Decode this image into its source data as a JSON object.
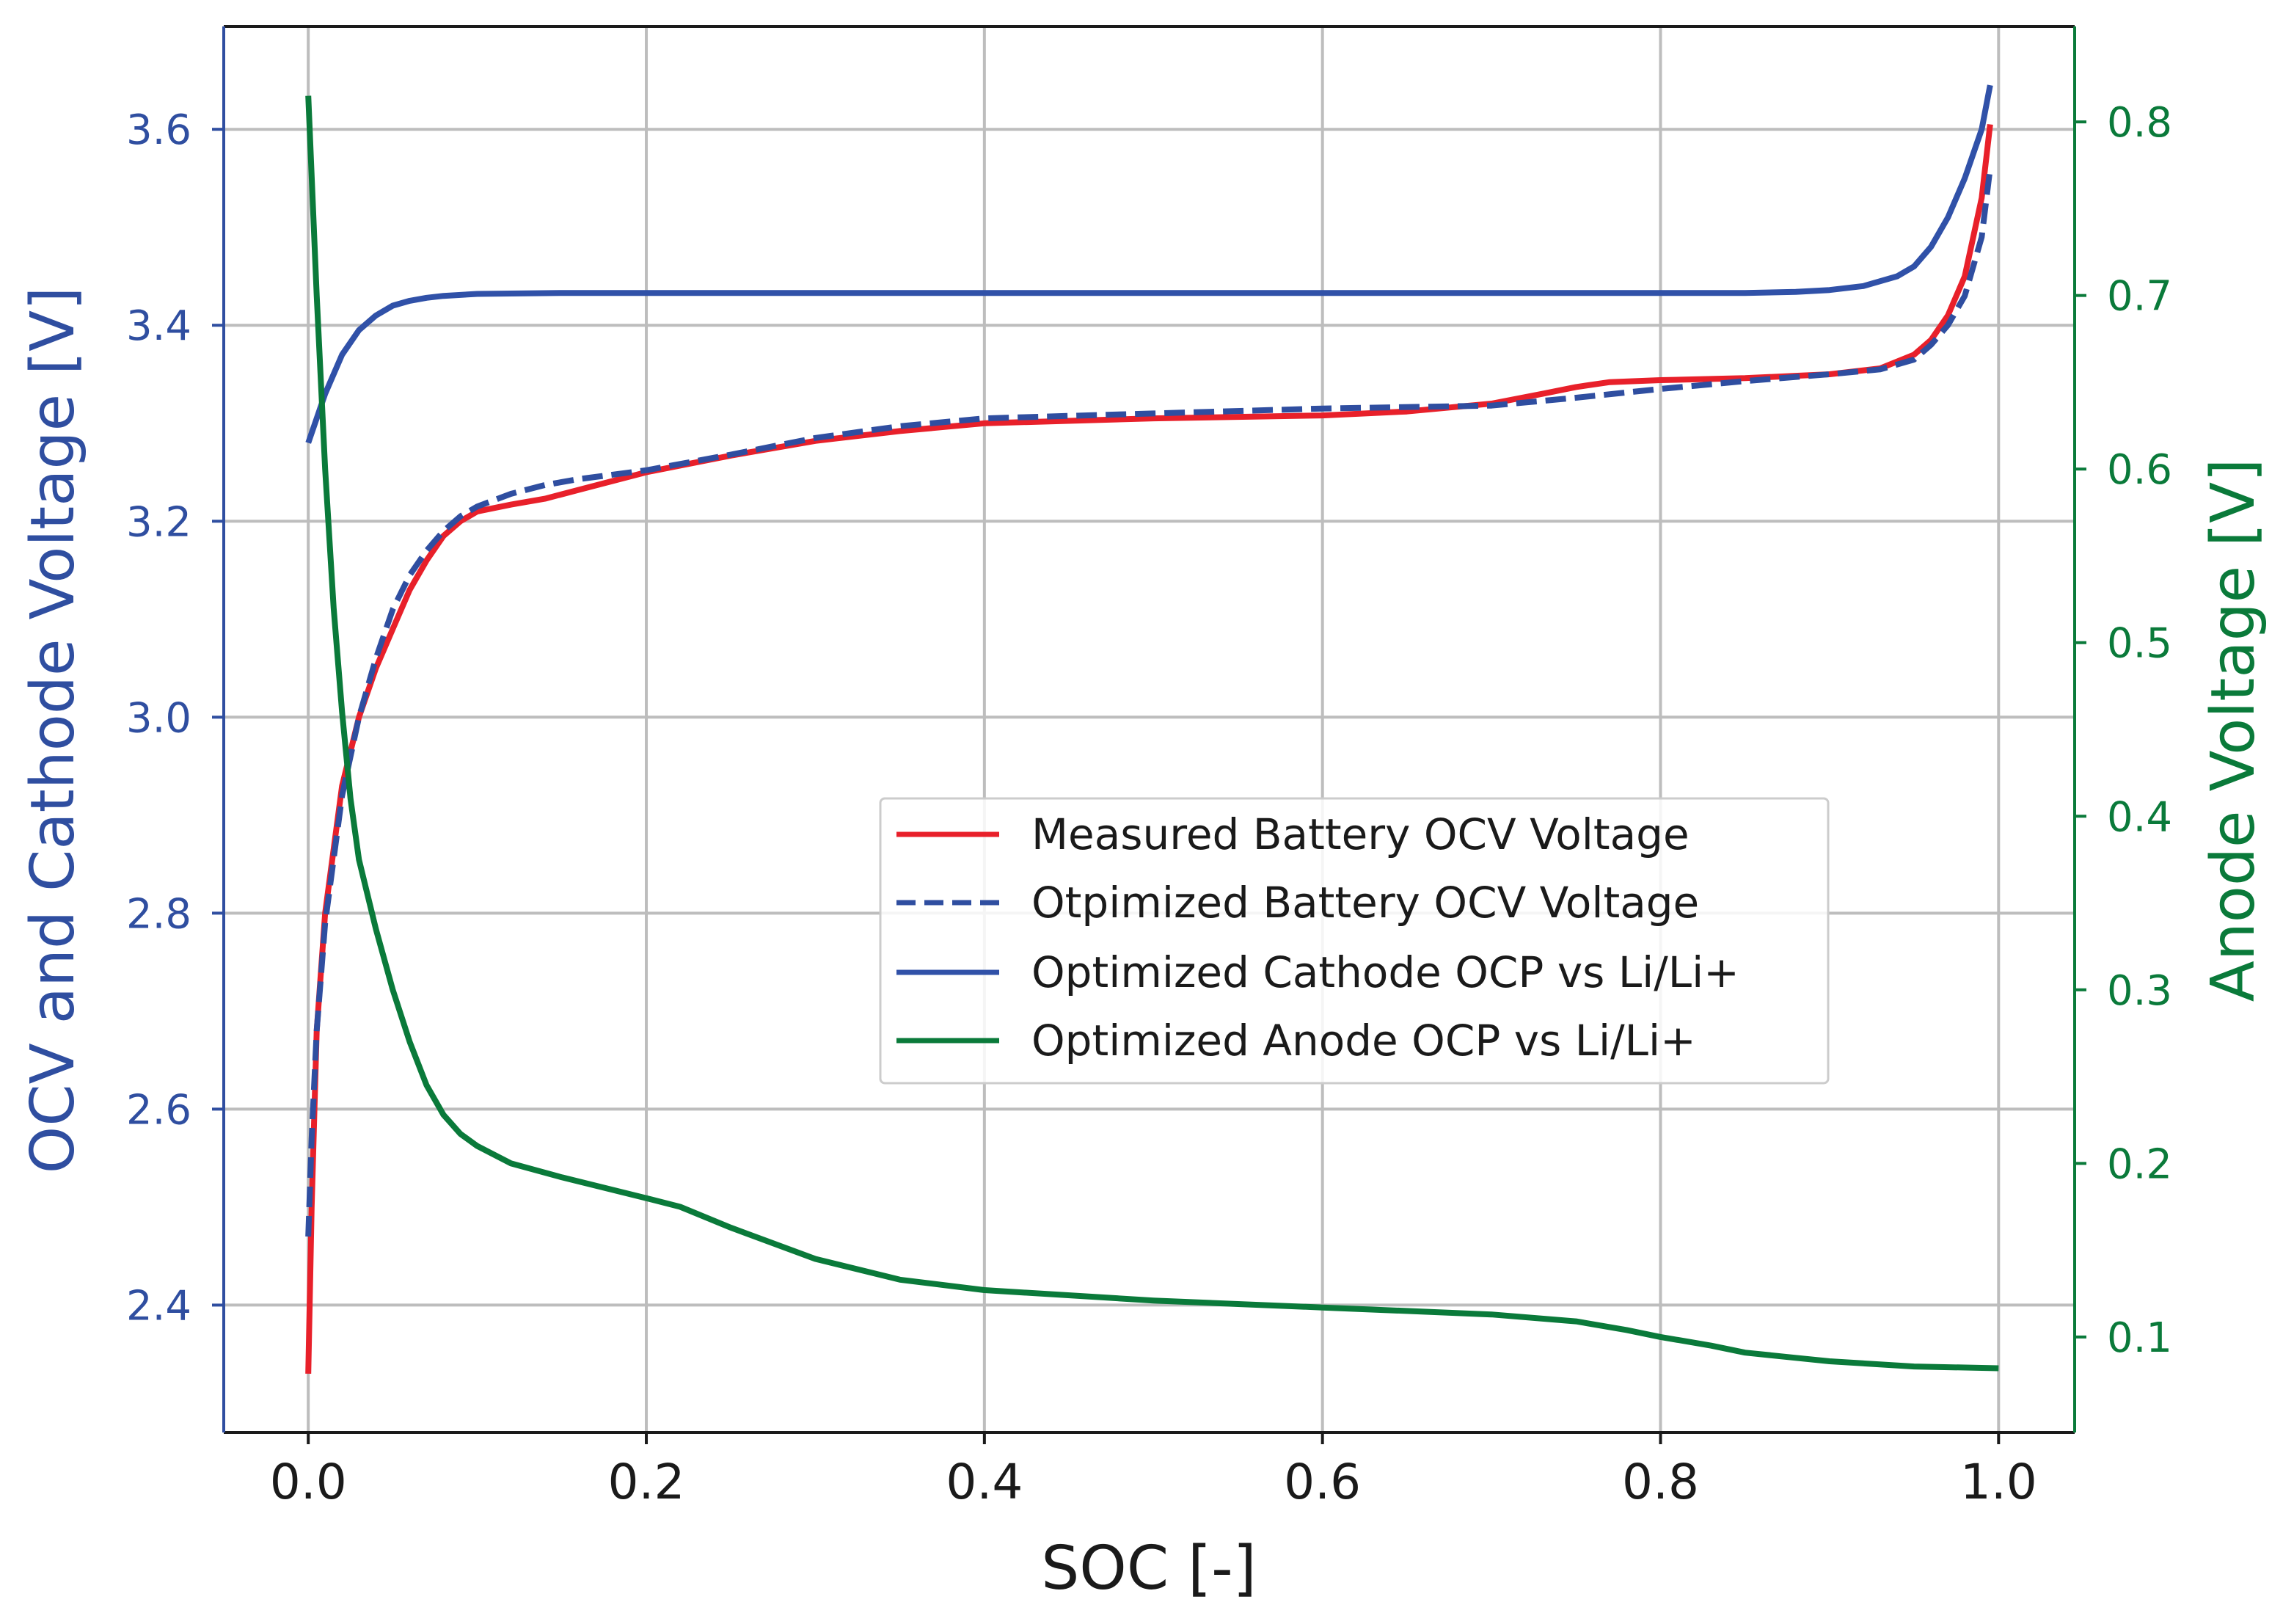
{
  "chart_data": {
    "type": "line",
    "title": "",
    "xlabel": "SOC [-]",
    "ylabel_left": "OCV and Cathode Voltage [V]",
    "ylabel_right": "Anode Voltage [V]",
    "xlim": [
      -0.05,
      1.045
    ],
    "ylim_left": [
      2.27,
      3.705
    ],
    "ylim_right": [
      0.045,
      0.855
    ],
    "x_ticks": [
      0.0,
      0.2,
      0.4,
      0.6,
      0.8,
      1.0
    ],
    "x_tick_labels": [
      "0.0",
      "0.2",
      "0.4",
      "0.6",
      "0.8",
      "1.0"
    ],
    "y_left_ticks": [
      2.4,
      2.6,
      2.8,
      3.0,
      3.2,
      3.4,
      3.6
    ],
    "y_left_tick_labels": [
      "2.4",
      "2.6",
      "2.8",
      "3.0",
      "3.2",
      "3.4",
      "3.6"
    ],
    "y_right_ticks": [
      0.1,
      0.2,
      0.3,
      0.4,
      0.5,
      0.6,
      0.7,
      0.8
    ],
    "y_right_tick_labels": [
      "0.1",
      "0.2",
      "0.3",
      "0.4",
      "0.5",
      "0.6",
      "0.7",
      "0.8"
    ],
    "grid": true,
    "legend_position": "center-right",
    "colors": {
      "left_axis": "#2f4ea0",
      "right_axis": "#0a7a3a",
      "grid": "#bdbdbd"
    },
    "series": [
      {
        "name": "Measured Battery OCV Voltage",
        "axis": "left",
        "color": "#e8202a",
        "dash": "solid",
        "x": [
          0.0,
          0.002,
          0.005,
          0.01,
          0.02,
          0.03,
          0.04,
          0.05,
          0.06,
          0.07,
          0.08,
          0.09,
          0.1,
          0.12,
          0.14,
          0.16,
          0.2,
          0.25,
          0.3,
          0.35,
          0.4,
          0.5,
          0.6,
          0.65,
          0.7,
          0.73,
          0.75,
          0.77,
          0.8,
          0.85,
          0.9,
          0.93,
          0.95,
          0.96,
          0.97,
          0.98,
          0.99,
          0.995
        ],
        "y": [
          2.33,
          2.5,
          2.68,
          2.8,
          2.93,
          3.0,
          3.05,
          3.09,
          3.13,
          3.16,
          3.185,
          3.2,
          3.21,
          3.217,
          3.223,
          3.232,
          3.25,
          3.267,
          3.282,
          3.292,
          3.3,
          3.305,
          3.308,
          3.312,
          3.32,
          3.33,
          3.337,
          3.342,
          3.344,
          3.346,
          3.35,
          3.356,
          3.37,
          3.385,
          3.41,
          3.45,
          3.53,
          3.605
        ]
      },
      {
        "name": "Otpimized Battery OCV Voltage",
        "axis": "left",
        "color": "#2f4ea0",
        "dash": "dashed",
        "x": [
          0.0,
          0.002,
          0.005,
          0.01,
          0.02,
          0.03,
          0.04,
          0.05,
          0.06,
          0.07,
          0.08,
          0.09,
          0.1,
          0.12,
          0.14,
          0.16,
          0.2,
          0.25,
          0.3,
          0.35,
          0.4,
          0.5,
          0.6,
          0.7,
          0.75,
          0.8,
          0.85,
          0.9,
          0.93,
          0.95,
          0.96,
          0.97,
          0.98,
          0.99,
          0.995
        ],
        "y": [
          2.47,
          2.57,
          2.68,
          2.79,
          2.92,
          3.0,
          3.06,
          3.11,
          3.145,
          3.17,
          3.19,
          3.205,
          3.215,
          3.228,
          3.237,
          3.243,
          3.252,
          3.268,
          3.285,
          3.297,
          3.305,
          3.31,
          3.315,
          3.318,
          3.326,
          3.335,
          3.343,
          3.35,
          3.355,
          3.365,
          3.38,
          3.4,
          3.43,
          3.49,
          3.56
        ]
      },
      {
        "name": "Optimized Cathode OCP vs Li/Li+",
        "axis": "left",
        "color": "#3051a8",
        "dash": "solid",
        "x": [
          0.0,
          0.01,
          0.02,
          0.03,
          0.04,
          0.05,
          0.06,
          0.07,
          0.08,
          0.1,
          0.15,
          0.2,
          0.3,
          0.4,
          0.5,
          0.6,
          0.7,
          0.8,
          0.85,
          0.88,
          0.9,
          0.92,
          0.94,
          0.95,
          0.96,
          0.97,
          0.98,
          0.99,
          0.995
        ],
        "y": [
          3.28,
          3.33,
          3.37,
          3.395,
          3.41,
          3.42,
          3.425,
          3.428,
          3.43,
          3.432,
          3.433,
          3.433,
          3.433,
          3.433,
          3.433,
          3.433,
          3.433,
          3.433,
          3.433,
          3.434,
          3.436,
          3.44,
          3.45,
          3.46,
          3.48,
          3.51,
          3.55,
          3.6,
          3.645
        ]
      },
      {
        "name": "Optimized Anode OCP vs Li/Li+",
        "axis": "right",
        "color": "#0a7a3a",
        "dash": "solid",
        "x": [
          0.0,
          0.005,
          0.01,
          0.015,
          0.02,
          0.025,
          0.03,
          0.04,
          0.05,
          0.06,
          0.07,
          0.08,
          0.09,
          0.1,
          0.12,
          0.15,
          0.2,
          0.22,
          0.25,
          0.3,
          0.35,
          0.4,
          0.5,
          0.6,
          0.7,
          0.75,
          0.78,
          0.8,
          0.83,
          0.85,
          0.88,
          0.9,
          0.95,
          1.0
        ],
        "y": [
          0.815,
          0.7,
          0.6,
          0.52,
          0.46,
          0.41,
          0.375,
          0.335,
          0.3,
          0.27,
          0.245,
          0.228,
          0.217,
          0.21,
          0.2,
          0.192,
          0.18,
          0.175,
          0.163,
          0.145,
          0.133,
          0.127,
          0.121,
          0.117,
          0.113,
          0.109,
          0.104,
          0.1,
          0.095,
          0.091,
          0.088,
          0.086,
          0.083,
          0.082
        ]
      }
    ]
  }
}
